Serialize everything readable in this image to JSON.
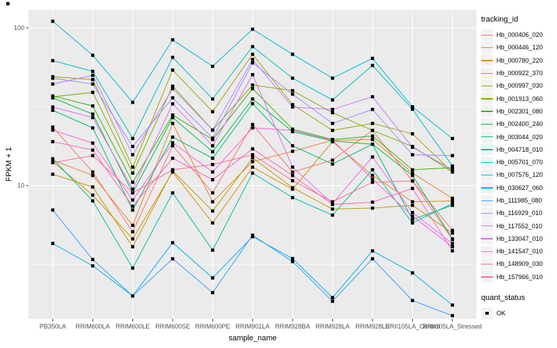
{
  "figure": {
    "panel_bg": "#EBEBEB",
    "grid_color": "#FFFFFF",
    "tick_text_color": "#4D4D4D",
    "tick_mark_color": "#333333",
    "title_color": "#000000"
  },
  "axes": {
    "y_title": "FPKM + 1",
    "x_title": "sample_name"
  },
  "legend": {
    "tracking_title": "tracking_id",
    "quant_title": "quant_status",
    "quant_ok_label": "OK"
  },
  "chart_data": {
    "type": "line",
    "title": "",
    "xlabel": "sample_name",
    "ylabel": "FPKM + 1",
    "y_scale": "log10",
    "grid": true,
    "legend_position": "right",
    "point_marker": "black-square",
    "y_major_ticks": [
      {
        "label": "100",
        "value": 100
      },
      {
        "label": "10",
        "value": 10
      }
    ],
    "y_minor_ticks": [
      31.623,
      3.1623
    ],
    "ylim_values": [
      1.44,
      130
    ],
    "categories": [
      "PB350LA",
      "RRIM600LA",
      "RRIM600LE",
      "RRIM600SE",
      "RRIM600PE",
      "RRIM901LA",
      "RRIM928BA",
      "RRIM928LA",
      "RRIM928LE",
      "RRII105LA_Control",
      "RRII105LA_Stressed"
    ],
    "series": [
      {
        "name": "Hb_000406_020",
        "color": "#F8766D",
        "values": [
          23.5,
          12.2,
          5.1,
          17.9,
          9.0,
          24.4,
          12.2,
          14.5,
          22.4,
          10.7,
          5.2
        ]
      },
      {
        "name": "Hb_000446_120",
        "color": "#EA8331",
        "values": [
          14.5,
          11.6,
          5.6,
          24.8,
          7.9,
          14.2,
          16.5,
          19.4,
          19.6,
          12.0,
          8.3
        ]
      },
      {
        "name": "Hb_000780_220",
        "color": "#D89000",
        "values": [
          14.2,
          8.7,
          4.6,
          12.2,
          5.8,
          13.1,
          9.5,
          19.0,
          11.6,
          7.9,
          8.0
        ]
      },
      {
        "name": "Hb_000922_370",
        "color": "#C09B00",
        "values": [
          11.8,
          9.8,
          4.1,
          12.4,
          6.9,
          15.0,
          9.7,
          7.1,
          7.2,
          7.5,
          5.0
        ]
      },
      {
        "name": "Hb_000997_030",
        "color": "#A3A500",
        "values": [
          49,
          47,
          13.1,
          54,
          29.4,
          68,
          32.6,
          22.4,
          24.8,
          21.3,
          12.2
        ]
      },
      {
        "name": "Hb_001913_060",
        "color": "#7CAE00",
        "values": [
          36.5,
          39,
          12.0,
          42.7,
          22.5,
          43.4,
          40,
          29,
          22.4,
          17.7,
          12.2
        ]
      },
      {
        "name": "Hb_002301_080",
        "color": "#39B600",
        "values": [
          37,
          32,
          10.5,
          28,
          19.6,
          41.2,
          22.8,
          19.6,
          20.6,
          12.6,
          13.0
        ]
      },
      {
        "name": "Hb_002400_240",
        "color": "#00BB4E",
        "values": [
          36,
          28.4,
          9.0,
          27,
          16.4,
          35.4,
          22.0,
          19.2,
          18.3,
          11.6,
          4.6
        ]
      },
      {
        "name": "Hb_003044_020",
        "color": "#00BF7D",
        "values": [
          30,
          23.2,
          7.0,
          20.3,
          14.9,
          33.1,
          17.9,
          13.7,
          18.3,
          6.1,
          7.5
        ]
      },
      {
        "name": "Hb_004718_010",
        "color": "#00C1A3",
        "values": [
          14.8,
          8.0,
          3.0,
          9.0,
          3.9,
          12.0,
          8.4,
          6.5,
          12.6,
          5.8,
          7.7
        ]
      },
      {
        "name": "Hb_005701_070",
        "color": "#00BFC4",
        "values": [
          62,
          53,
          19.9,
          65,
          35.4,
          76,
          48,
          34.9,
          57.8,
          30.5,
          13.3
        ]
      },
      {
        "name": "Hb_007576_120",
        "color": "#00BAE0",
        "values": [
          110,
          67,
          33.7,
          84,
          57,
          98,
          68,
          48,
          64,
          31.6,
          19.9
        ]
      },
      {
        "name": "Hb_030627_060",
        "color": "#00B0F6",
        "values": [
          4.3,
          3.1,
          2.0,
          4.35,
          2.6,
          4.75,
          3.45,
          1.95,
          3.86,
          2.8,
          1.75
        ]
      },
      {
        "name": "Hb_111985_080",
        "color": "#35A2FF",
        "values": [
          7.0,
          3.4,
          2.0,
          3.44,
          2.1,
          4.85,
          3.3,
          1.85,
          3.44,
          1.87,
          1.5
        ]
      },
      {
        "name": "Hb_116929_010",
        "color": "#9590FF",
        "values": [
          48,
          44,
          17.7,
          36,
          20,
          60,
          38,
          24.8,
          30.4,
          15.7,
          15.5
        ]
      },
      {
        "name": "Hb_117552_010",
        "color": "#C77CFF",
        "values": [
          44,
          50,
          15.7,
          41.2,
          22.5,
          63,
          31.5,
          30.4,
          36.6,
          17.5,
          12.6
        ]
      },
      {
        "name": "Hb_133047_010",
        "color": "#E76BF3",
        "values": [
          31.5,
          27,
          9.5,
          33,
          17.9,
          50.5,
          13.1,
          7.7,
          15.2,
          6.75,
          4.3
        ]
      },
      {
        "name": "Hb_141547_010",
        "color": "#FA62DB",
        "values": [
          22.5,
          18.6,
          8.1,
          18.7,
          12.2,
          23.2,
          22.4,
          19.4,
          11.0,
          6.4,
          4.1
        ]
      },
      {
        "name": "Hb_148909_030",
        "color": "#FF62BC",
        "values": [
          19,
          16.8,
          7.4,
          14.9,
          10.9,
          17.1,
          11.6,
          7.6,
          7.85,
          9.6,
          3.86
        ]
      },
      {
        "name": "Hb_157966_010",
        "color": "#FF6A98",
        "values": [
          14,
          15.5,
          9.0,
          12.6,
          13.6,
          15.7,
          10.75,
          7.9,
          10.5,
          10.7,
          4.55
        ]
      }
    ]
  }
}
